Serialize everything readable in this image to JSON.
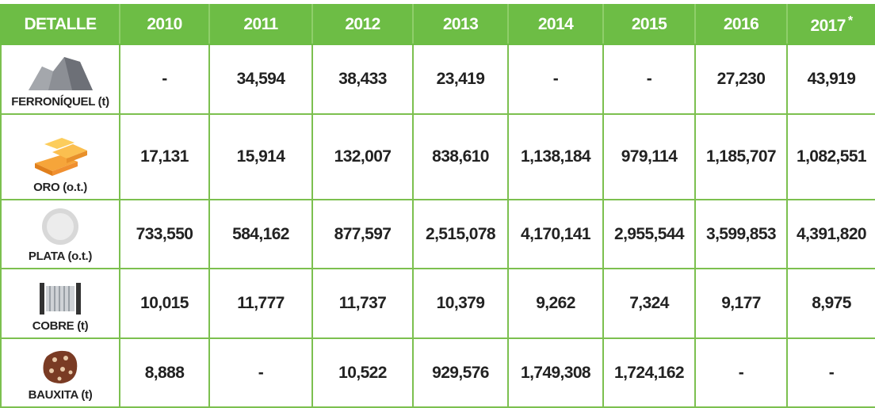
{
  "table": {
    "header": [
      "DETALLE",
      "2010",
      "2011",
      "2012",
      "2013",
      "2014",
      "2015",
      "2016",
      "2017"
    ],
    "note_mark": "*",
    "rows": [
      {
        "label": "FERRONÍQUEL (t)",
        "values": [
          "-",
          "34,594",
          "38,433",
          "23,419",
          "-",
          "-",
          "27,230",
          "43,919"
        ]
      },
      {
        "label": "ORO (o.t.)",
        "values": [
          "17,131",
          "15,914",
          "132,007",
          "838,610",
          "1,138,184",
          "979,114",
          "1,185,707",
          "1,082,551"
        ]
      },
      {
        "label": "PLATA (o.t.)",
        "values": [
          "733,550",
          "584,162",
          "877,597",
          "2,515,078",
          "4,170,141",
          "2,955,544",
          "3,599,853",
          "4,391,820"
        ]
      },
      {
        "label": "COBRE (t)",
        "values": [
          "10,015",
          "11,777",
          "11,737",
          "10,379",
          "9,262",
          "7,324",
          "9,177",
          "8,975"
        ]
      },
      {
        "label": "BAUXITA (t)",
        "values": [
          "8,888",
          "-",
          "10,522",
          "929,576",
          "1,749,308",
          "1,724,162",
          "-",
          "-"
        ]
      }
    ]
  }
}
